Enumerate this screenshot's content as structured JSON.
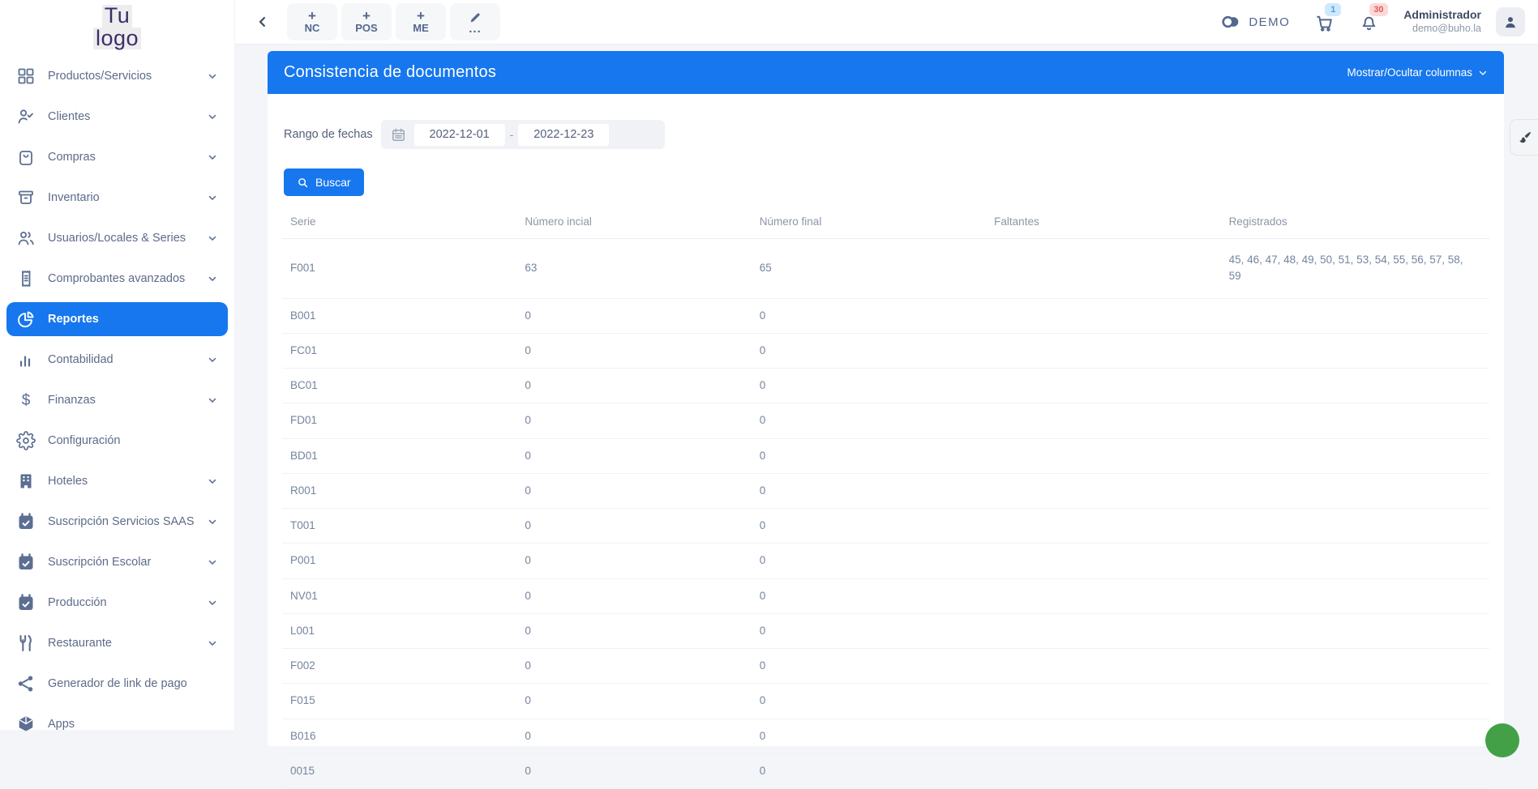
{
  "colors": {
    "accent": "#1677ee",
    "logo_purple": "#3e2d68",
    "cart_badge_bg": "#cfe9fc",
    "cart_badge_text": "#41a0f5",
    "bell_badge_bg": "#fbd9d9",
    "bell_badge_text": "#e05b5b",
    "fab_green": "#43a047"
  },
  "app": {
    "logo_line1": "Tu",
    "logo_line2": "logo"
  },
  "sidebar": {
    "items": [
      {
        "label": "Productos/Servicios",
        "icon": "grid-icon",
        "chevron": true,
        "active": false
      },
      {
        "label": "Clientes",
        "icon": "person-check-icon",
        "chevron": true,
        "active": false
      },
      {
        "label": "Compras",
        "icon": "shopping-bag-icon",
        "chevron": true,
        "active": false
      },
      {
        "label": "Inventario",
        "icon": "inventory-box-icon",
        "chevron": true,
        "active": false
      },
      {
        "label": "Usuarios/Locales & Series",
        "icon": "users-icon",
        "chevron": true,
        "active": false
      },
      {
        "label": "Comprobantes avanzados",
        "icon": "receipt-icon",
        "chevron": true,
        "active": false
      },
      {
        "label": "Reportes",
        "icon": "pie-chart-icon",
        "chevron": false,
        "active": true
      },
      {
        "label": "Contabilidad",
        "icon": "bar-chart-icon",
        "chevron": true,
        "active": false
      },
      {
        "label": "Finanzas",
        "icon": "dollar-icon",
        "chevron": true,
        "active": false
      },
      {
        "label": "Configuración",
        "icon": "gear-icon",
        "chevron": false,
        "active": false
      },
      {
        "label": "Hoteles",
        "icon": "building-icon",
        "chevron": true,
        "active": false
      },
      {
        "label": "Suscripción Servicios SAAS",
        "icon": "calendar-check-icon",
        "chevron": true,
        "active": false
      },
      {
        "label": "Suscripción Escolar",
        "icon": "calendar-check-icon",
        "chevron": true,
        "active": false
      },
      {
        "label": "Producción",
        "icon": "calendar-check-icon",
        "chevron": true,
        "active": false
      },
      {
        "label": "Restaurante",
        "icon": "restaurant-icon",
        "chevron": true,
        "active": false
      },
      {
        "label": "Generador de link de pago",
        "icon": "share-icon",
        "chevron": false,
        "active": false
      },
      {
        "label": "Apps",
        "icon": "cube-icon",
        "chevron": false,
        "active": false
      }
    ]
  },
  "topbar": {
    "quick_buttons": [
      {
        "plus": "+",
        "label": "NC"
      },
      {
        "plus": "+",
        "label": "POS"
      },
      {
        "plus": "+",
        "label": "ME"
      }
    ],
    "more_dots": "...",
    "demo_label": "DEMO",
    "cart_badge": "1",
    "bell_badge": "30",
    "user": {
      "name": "Administrador",
      "email": "demo@buho.la"
    }
  },
  "report": {
    "title": "Consistencia de documentos",
    "columns_toggle_label": "Mostrar/Ocultar columnas",
    "date_range": {
      "label": "Rango de fechas",
      "from": "2022-12-01",
      "separator": "-",
      "to": "2022-12-23"
    },
    "search_label": "Buscar",
    "table": {
      "columns": [
        "Serie",
        "Número incial",
        "Número final",
        "Faltantes",
        "Registrados"
      ],
      "rows": [
        {
          "serie": "F001",
          "inicial": "63",
          "final": "65",
          "faltantes": "",
          "registrados": "45, 46, 47, 48, 49, 50, 51, 53, 54, 55, 56, 57, 58, 59"
        },
        {
          "serie": "B001",
          "inicial": "0",
          "final": "0",
          "faltantes": "",
          "registrados": ""
        },
        {
          "serie": "FC01",
          "inicial": "0",
          "final": "0",
          "faltantes": "",
          "registrados": ""
        },
        {
          "serie": "BC01",
          "inicial": "0",
          "final": "0",
          "faltantes": "",
          "registrados": ""
        },
        {
          "serie": "FD01",
          "inicial": "0",
          "final": "0",
          "faltantes": "",
          "registrados": ""
        },
        {
          "serie": "BD01",
          "inicial": "0",
          "final": "0",
          "faltantes": "",
          "registrados": ""
        },
        {
          "serie": "R001",
          "inicial": "0",
          "final": "0",
          "faltantes": "",
          "registrados": ""
        },
        {
          "serie": "T001",
          "inicial": "0",
          "final": "0",
          "faltantes": "",
          "registrados": ""
        },
        {
          "serie": "P001",
          "inicial": "0",
          "final": "0",
          "faltantes": "",
          "registrados": ""
        },
        {
          "serie": "NV01",
          "inicial": "0",
          "final": "0",
          "faltantes": "",
          "registrados": ""
        },
        {
          "serie": "L001",
          "inicial": "0",
          "final": "0",
          "faltantes": "",
          "registrados": ""
        },
        {
          "serie": "F002",
          "inicial": "0",
          "final": "0",
          "faltantes": "",
          "registrados": ""
        },
        {
          "serie": "F015",
          "inicial": "0",
          "final": "0",
          "faltantes": "",
          "registrados": ""
        },
        {
          "serie": "B016",
          "inicial": "0",
          "final": "0",
          "faltantes": "",
          "registrados": ""
        },
        {
          "serie": "0015",
          "inicial": "0",
          "final": "0",
          "faltantes": "",
          "registrados": ""
        }
      ]
    }
  }
}
